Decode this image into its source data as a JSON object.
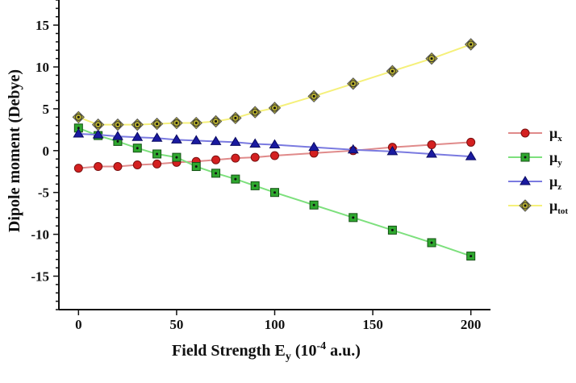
{
  "chart_data": {
    "type": "line",
    "title": "",
    "xlabel": {
      "main": "Field Strength E",
      "sub": "y",
      "paren_open": " (10",
      "sup": "-4",
      "paren_close": " a.u.)"
    },
    "ylabel": "Dipole moment (Debye)",
    "xlim": [
      -10,
      210
    ],
    "ylim": [
      -19,
      18
    ],
    "xticks": [
      0,
      50,
      100,
      150,
      200
    ],
    "yticks": [
      -15,
      -10,
      -5,
      0,
      5,
      10,
      15
    ],
    "grid": false,
    "legend": "right",
    "x": [
      0,
      10,
      20,
      30,
      40,
      50,
      60,
      70,
      80,
      90,
      100,
      120,
      140,
      160,
      180,
      200
    ],
    "series": [
      {
        "name": "μx",
        "symbol": "μ",
        "subscript": "x",
        "marker": "circle",
        "color": "#d42020",
        "line_color": "#e08a8a",
        "values": [
          -2.1,
          -1.9,
          -1.9,
          -1.7,
          -1.6,
          -1.4,
          -1.3,
          -1.1,
          -0.9,
          -0.8,
          -0.6,
          -0.3,
          0.0,
          0.4,
          0.7,
          1.0
        ]
      },
      {
        "name": "μy",
        "symbol": "μ",
        "subscript": "y",
        "marker": "square",
        "color": "#2fa82f",
        "line_color": "#7de07d",
        "values": [
          2.7,
          1.8,
          1.1,
          0.3,
          -0.4,
          -0.8,
          -1.9,
          -2.7,
          -3.4,
          -4.2,
          -5.0,
          -6.5,
          -8.0,
          -9.5,
          -11.0,
          -12.6
        ]
      },
      {
        "name": "μz",
        "symbol": "μ",
        "subscript": "z",
        "marker": "triangle",
        "color": "#1a1aa0",
        "line_color": "#7a7ae0",
        "values": [
          2.0,
          1.9,
          1.7,
          1.6,
          1.5,
          1.3,
          1.2,
          1.1,
          1.0,
          0.8,
          0.7,
          0.4,
          0.1,
          -0.1,
          -0.4,
          -0.7
        ]
      },
      {
        "name": "μtot",
        "symbol": "μ",
        "subscript": "tot",
        "marker": "diamond-circle",
        "color": "#b8b030",
        "line_color": "#f5f07a",
        "values": [
          4.0,
          3.1,
          3.1,
          3.1,
          3.2,
          3.3,
          3.3,
          3.5,
          3.9,
          4.6,
          5.1,
          6.5,
          8.0,
          9.5,
          11.0,
          12.7
        ]
      }
    ]
  }
}
